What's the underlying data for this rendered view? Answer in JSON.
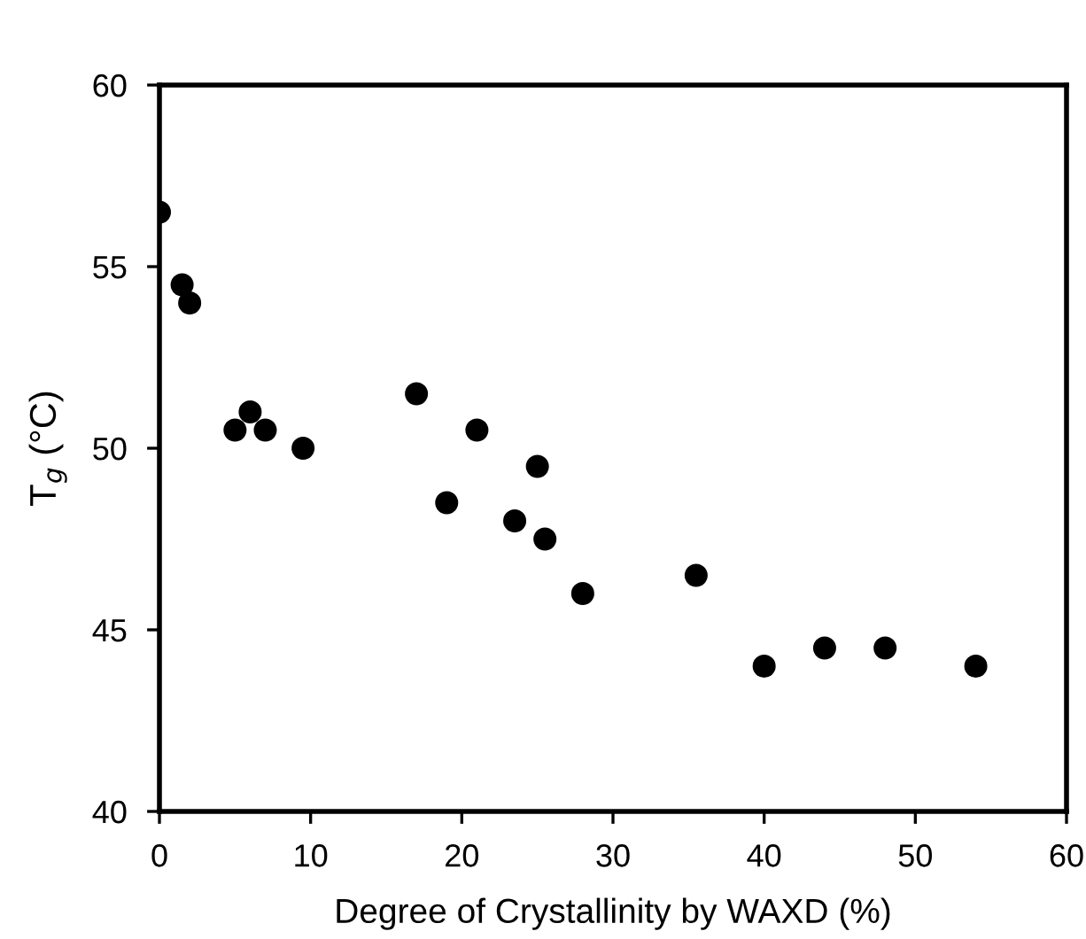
{
  "chart_data": {
    "type": "scatter",
    "xlabel": "Degree of Crystallinity by WAXD (%)",
    "ylabel": "T$_{g}$ (°C)",
    "x": [
      0,
      1.5,
      2,
      5,
      6,
      7,
      9.5,
      17,
      19,
      21,
      23.5,
      25,
      25.5,
      28,
      35.5,
      40,
      44,
      48,
      54
    ],
    "series": [
      {
        "color": "#000000",
        "values": [
          56.5,
          54.5,
          54,
          50.5,
          51,
          50.5,
          50,
          51.5,
          48.5,
          50.5,
          48,
          49.5,
          47.5,
          46,
          46.5,
          44,
          44.5,
          44.5,
          44
        ]
      }
    ],
    "xlim": [
      0,
      60
    ],
    "xticks": [
      0,
      10,
      20,
      30,
      40,
      50,
      60
    ],
    "ylim": [
      40,
      60
    ],
    "yticks": [
      40,
      45,
      50,
      55,
      60
    ],
    "marker": "circle",
    "grid": false,
    "legend": false
  }
}
